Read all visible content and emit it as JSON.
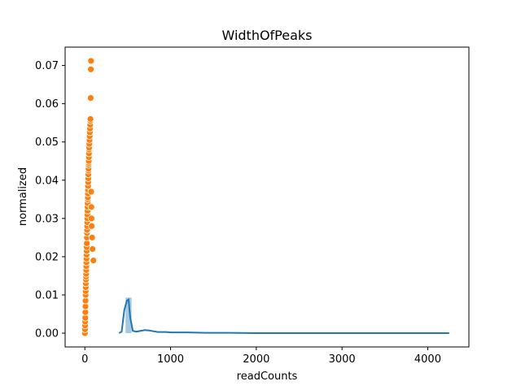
{
  "chart_data": {
    "type": "scatter",
    "title": "WidthOfPeaks",
    "xlabel": "readCounts",
    "ylabel": "normalized",
    "xlim": [
      -230,
      4480
    ],
    "ylim": [
      -0.0036,
      0.0748
    ],
    "x_ticks": [
      0,
      1000,
      2000,
      3000,
      4000
    ],
    "y_ticks": [
      0.0,
      0.01,
      0.02,
      0.03,
      0.04,
      0.05,
      0.06,
      0.07
    ],
    "x_tick_labels": [
      "0",
      "1000",
      "2000",
      "3000",
      "4000"
    ],
    "y_tick_labels": [
      "0.00",
      "0.01",
      "0.02",
      "0.03",
      "0.04",
      "0.05",
      "0.06",
      "0.07"
    ],
    "grid": false,
    "legend": "none",
    "colors": {
      "scatter": "#ff7f0e",
      "histogram": "#1f77b4",
      "kde": "#1f77b4"
    },
    "histogram": {
      "bins": [
        {
          "x0": 475,
          "x1": 545,
          "value": 0.0093
        }
      ]
    },
    "kde_line": {
      "x": [
        400,
        430,
        460,
        490,
        510,
        530,
        560,
        600,
        650,
        700,
        750,
        800,
        850,
        900,
        950,
        1000,
        1100,
        1200,
        1400,
        1700,
        2000,
        2500,
        3000,
        3500,
        4000,
        4250
      ],
      "y": [
        0.0,
        0.0004,
        0.006,
        0.0085,
        0.0088,
        0.004,
        0.0006,
        0.0004,
        0.0006,
        0.0008,
        0.0007,
        0.0005,
        0.0003,
        0.0003,
        0.0003,
        0.0002,
        0.0002,
        0.0002,
        0.0001,
        0.0001,
        0.0,
        0.0,
        0.0,
        0.0,
        0.0,
        0.0
      ]
    },
    "scatter_points": {
      "x": [
        1,
        2,
        3,
        4,
        5,
        6,
        7,
        8,
        9,
        10,
        11,
        12,
        13,
        14,
        15,
        16,
        17,
        18,
        19,
        20,
        21,
        22,
        23,
        24,
        25,
        26,
        27,
        28,
        29,
        30,
        31,
        32,
        33,
        34,
        35,
        36,
        37,
        38,
        39,
        40,
        41,
        42,
        43,
        44,
        45,
        46,
        47,
        48,
        49,
        50,
        52,
        54,
        56,
        58,
        60,
        62,
        64,
        66,
        68,
        70,
        72,
        74,
        76,
        78,
        80,
        85,
        90,
        100
      ],
      "y": [
        0.0,
        0.001,
        0.002,
        0.003,
        0.004,
        0.0055,
        0.007,
        0.0085,
        0.01,
        0.011,
        0.012,
        0.013,
        0.014,
        0.0148,
        0.0155,
        0.0165,
        0.0175,
        0.0185,
        0.0195,
        0.0205,
        0.0215,
        0.0225,
        0.0235,
        0.025,
        0.0262,
        0.027,
        0.028,
        0.029,
        0.03,
        0.031,
        0.032,
        0.033,
        0.034,
        0.035,
        0.0355,
        0.0365,
        0.0375,
        0.0385,
        0.0395,
        0.0405,
        0.0415,
        0.0425,
        0.043,
        0.044,
        0.0445,
        0.045,
        0.046,
        0.047,
        0.048,
        0.0485,
        0.0495,
        0.0505,
        0.0515,
        0.0525,
        0.0535,
        0.0545,
        0.0555,
        0.056,
        0.0615,
        0.069,
        0.0712,
        0.037,
        0.033,
        0.03,
        0.028,
        0.025,
        0.022,
        0.019
      ]
    }
  }
}
